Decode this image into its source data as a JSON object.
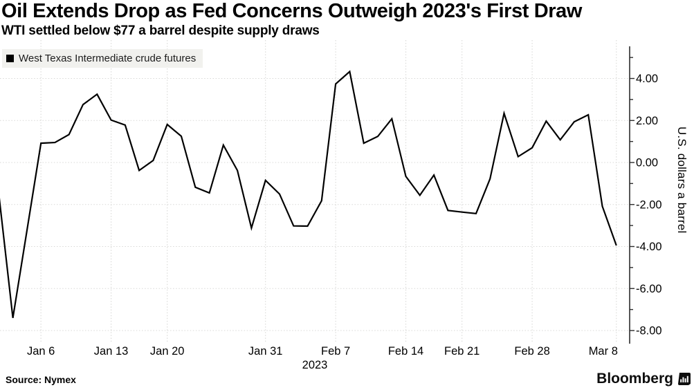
{
  "header": {
    "title": "Oil Extends Drop as Fed Concerns Outweigh 2023's First Draw",
    "subtitle": "WTI settled below $77 a barrel despite supply draws"
  },
  "legend": {
    "label": "West Texas Intermediate crude futures",
    "swatch_color": "#000000"
  },
  "footer": {
    "source": "Source: Nymex",
    "brand": "Bloomberg"
  },
  "chart_data": {
    "type": "line",
    "title": "Oil Extends Drop as Fed Concerns Outweigh 2023's First Draw",
    "subtitle": "WTI settled below $77 a barrel despite supply draws",
    "ylabel": "U.S. dollars a barrel",
    "xlabel": "",
    "x_year_label": "2023",
    "ylim": [
      -8.6,
      5.5
    ],
    "grid": {
      "style": "dotted",
      "color": "#d8d8d6"
    },
    "legend_position": "top-left",
    "colors": {
      "line": "#000000",
      "axis": "#2b2b2b",
      "text": "#000000"
    },
    "yticks": [
      {
        "value": 4,
        "label": "4.00"
      },
      {
        "value": 2,
        "label": "2.00"
      },
      {
        "value": 0,
        "label": "0.00"
      },
      {
        "value": -2,
        "label": "-2.00"
      },
      {
        "value": -4,
        "label": "-4.00"
      },
      {
        "value": -6,
        "label": "-6.00"
      },
      {
        "value": -8,
        "label": "-8.00"
      }
    ],
    "ytick_minor_range": [
      5,
      -8
    ],
    "xticks": [
      {
        "label": "Jan 6",
        "index": 3
      },
      {
        "label": "Jan 13",
        "index": 8
      },
      {
        "label": "Jan 20",
        "index": 12
      },
      {
        "label": "Jan 31",
        "index": 19
      },
      {
        "label": "Feb 7",
        "index": 24
      },
      {
        "label": "Feb 14",
        "index": 29
      },
      {
        "label": "Feb 21",
        "index": 33
      },
      {
        "label": "Feb 28",
        "index": 38
      },
      {
        "label": "Mar 8",
        "index": 44,
        "label_offset": -19
      }
    ],
    "series": [
      {
        "name": "West Texas Intermediate crude futures",
        "color": "#000000",
        "points": [
          {
            "date": "Jan 3",
            "value": -1.5
          },
          {
            "date": "Jan 4",
            "value": -7.4
          },
          {
            "date": "Jan 5",
            "value": -3.25
          },
          {
            "date": "Jan 6",
            "value": 0.92
          },
          {
            "date": "Jan 9",
            "value": 0.95
          },
          {
            "date": "Jan 10",
            "value": 1.33
          },
          {
            "date": "Jan 11",
            "value": 2.76
          },
          {
            "date": "Jan 12",
            "value": 3.25
          },
          {
            "date": "Jan 13",
            "value": 2.02
          },
          {
            "date": "Jan 17",
            "value": 1.78
          },
          {
            "date": "Jan 18",
            "value": -0.38
          },
          {
            "date": "Jan 19",
            "value": 0.1
          },
          {
            "date": "Jan 20",
            "value": 1.81
          },
          {
            "date": "Jan 23",
            "value": 1.25
          },
          {
            "date": "Jan 24",
            "value": -1.18
          },
          {
            "date": "Jan 25",
            "value": -1.45
          },
          {
            "date": "Jan 26",
            "value": 0.83
          },
          {
            "date": "Jan 27",
            "value": -0.38
          },
          {
            "date": "Jan 30",
            "value": -3.12
          },
          {
            "date": "Jan 31",
            "value": -0.85
          },
          {
            "date": "Feb 1",
            "value": -1.5
          },
          {
            "date": "Feb 2",
            "value": -3.02
          },
          {
            "date": "Feb 3",
            "value": -3.03
          },
          {
            "date": "Feb 6",
            "value": -1.82
          },
          {
            "date": "Feb 7",
            "value": 3.74
          },
          {
            "date": "Feb 8",
            "value": 4.33
          },
          {
            "date": "Feb 9",
            "value": 0.92
          },
          {
            "date": "Feb 10",
            "value": 1.24
          },
          {
            "date": "Feb 13",
            "value": 2.08
          },
          {
            "date": "Feb 14",
            "value": -0.66
          },
          {
            "date": "Feb 15",
            "value": -1.56
          },
          {
            "date": "Feb 16",
            "value": -0.6
          },
          {
            "date": "Feb 17",
            "value": -2.28
          },
          {
            "date": "Feb 21",
            "value": -2.36
          },
          {
            "date": "Feb 22",
            "value": -2.43
          },
          {
            "date": "Feb 23",
            "value": -0.78
          },
          {
            "date": "Feb 24",
            "value": 2.34
          },
          {
            "date": "Feb 27",
            "value": 0.28
          },
          {
            "date": "Feb 28",
            "value": 0.7
          },
          {
            "date": "Mar 1",
            "value": 1.97
          },
          {
            "date": "Mar 2",
            "value": 1.08
          },
          {
            "date": "Mar 3",
            "value": 1.94
          },
          {
            "date": "Mar 6",
            "value": 2.27
          },
          {
            "date": "Mar 7",
            "value": -2.08
          },
          {
            "date": "Mar 8",
            "value": -3.95
          }
        ]
      }
    ]
  }
}
